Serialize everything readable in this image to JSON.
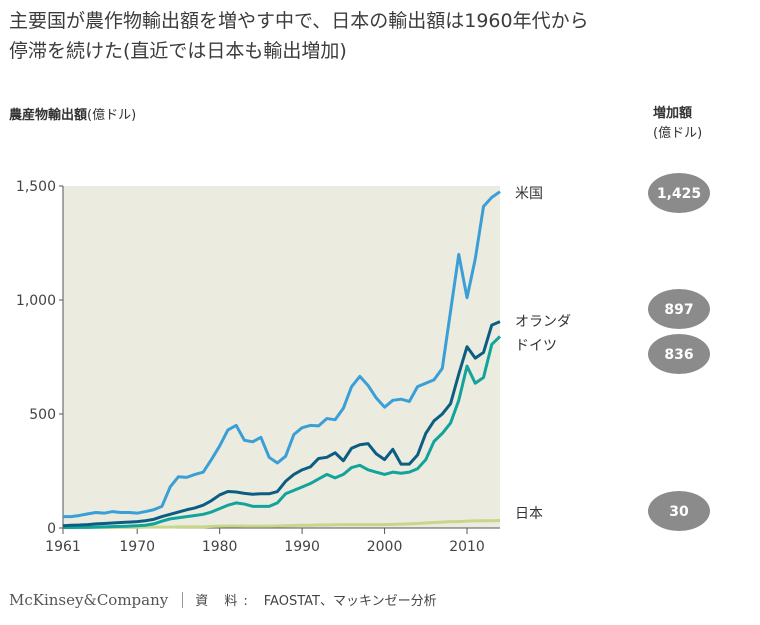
{
  "headline": {
    "line1": "主要国が農作物輸出額を増やす中で、日本の輸出額は1960年代から",
    "line2": "停滞を続けた(直近では日本も輸出増加)"
  },
  "y_label": {
    "bold": "農産物輸出額",
    "unit": "(億ドル)"
  },
  "increase_header": {
    "bold": "増加額",
    "unit": "(億ドル)"
  },
  "footer": {
    "brand": "McKinsey&Company",
    "source_label": "資 料:",
    "source_text": "FAOSTAT、マッキンゼー分析"
  },
  "chart_data": {
    "type": "line",
    "xlabel": "",
    "ylabel": "農産物輸出額(億ドル)",
    "xlim": [
      1961,
      2014
    ],
    "ylim": [
      0,
      1500
    ],
    "x_ticks": [
      1961,
      1970,
      1980,
      1990,
      2000,
      2010
    ],
    "y_ticks": [
      0,
      500,
      1000,
      1500
    ],
    "y_tick_labels": [
      "0",
      "500",
      "1,000",
      "1,500"
    ],
    "grid": false,
    "background": "#ecebe0",
    "x": [
      1961,
      1962,
      1963,
      1964,
      1965,
      1966,
      1967,
      1968,
      1969,
      1970,
      1971,
      1972,
      1973,
      1974,
      1975,
      1976,
      1977,
      1978,
      1979,
      1980,
      1981,
      1982,
      1983,
      1984,
      1985,
      1986,
      1987,
      1988,
      1989,
      1990,
      1991,
      1992,
      1993,
      1994,
      1995,
      1996,
      1997,
      1998,
      1999,
      2000,
      2001,
      2002,
      2003,
      2004,
      2005,
      2006,
      2007,
      2008,
      2009,
      2010,
      2011,
      2012,
      2013,
      2014
    ],
    "series": [
      {
        "name": "米国",
        "color": "#3a9fd6",
        "increase": "1,425",
        "values": [
          50,
          50,
          55,
          62,
          68,
          65,
          72,
          68,
          68,
          65,
          72,
          80,
          95,
          180,
          225,
          222,
          235,
          245,
          300,
          360,
          430,
          450,
          385,
          378,
          398,
          310,
          285,
          315,
          410,
          440,
          450,
          448,
          480,
          475,
          525,
          620,
          665,
          625,
          570,
          530,
          560,
          565,
          555,
          620,
          635,
          650,
          700,
          950,
          1200,
          1010,
          1180,
          1410,
          1450,
          1475
        ]
      },
      {
        "name": "オランダ",
        "color": "#0b5e82",
        "increase": "897",
        "values": [
          10,
          12,
          13,
          15,
          18,
          20,
          22,
          24,
          26,
          28,
          32,
          38,
          50,
          60,
          70,
          80,
          88,
          100,
          120,
          145,
          160,
          158,
          152,
          148,
          150,
          150,
          160,
          205,
          235,
          255,
          268,
          305,
          310,
          330,
          295,
          350,
          365,
          370,
          325,
          300,
          345,
          280,
          280,
          320,
          415,
          470,
          500,
          545,
          675,
          795,
          745,
          770,
          890,
          905
        ]
      },
      {
        "name": "ドイツ",
        "color": "#12a39a",
        "increase": "836",
        "values": [
          2,
          2,
          3,
          3,
          4,
          5,
          6,
          7,
          8,
          10,
          12,
          18,
          30,
          40,
          45,
          50,
          55,
          60,
          70,
          85,
          100,
          110,
          105,
          95,
          95,
          95,
          110,
          150,
          165,
          180,
          195,
          215,
          235,
          220,
          235,
          265,
          275,
          255,
          245,
          235,
          245,
          240,
          245,
          260,
          300,
          380,
          415,
          460,
          560,
          710,
          635,
          660,
          805,
          840
        ]
      },
      {
        "name": "日本",
        "color": "#c8d68a",
        "increase": "30",
        "values": [
          2,
          2,
          2,
          2,
          3,
          3,
          3,
          3,
          3,
          3,
          4,
          4,
          4,
          4,
          5,
          5,
          5,
          5,
          7,
          8,
          9,
          9,
          8,
          8,
          8,
          8,
          9,
          10,
          11,
          12,
          12,
          13,
          13,
          14,
          15,
          15,
          15,
          15,
          15,
          15,
          16,
          17,
          18,
          20,
          22,
          24,
          26,
          28,
          28,
          30,
          31,
          32,
          32,
          33
        ]
      }
    ]
  }
}
